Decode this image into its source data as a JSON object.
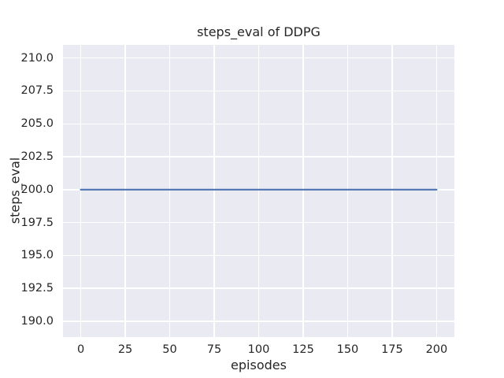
{
  "figure": {
    "background": "#ffffff",
    "text_color": "#262626"
  },
  "chart_data": {
    "type": "line",
    "title": "steps_eval of DDPG",
    "xlabel": "episodes",
    "ylabel": "steps_eval",
    "x_ticks": [
      0,
      25,
      50,
      75,
      100,
      125,
      150,
      175,
      200
    ],
    "x_tick_labels": [
      "0",
      "25",
      "50",
      "75",
      "100",
      "125",
      "150",
      "175",
      "200"
    ],
    "y_ticks": [
      190.0,
      192.5,
      195.0,
      197.5,
      200.0,
      202.5,
      205.0,
      207.5,
      210.0
    ],
    "y_tick_labels": [
      "190.0",
      "192.5",
      "195.0",
      "197.5",
      "200.0",
      "202.5",
      "205.0",
      "207.5",
      "210.0"
    ],
    "xlim": [
      -10,
      210
    ],
    "ylim": [
      188.8,
      211.0
    ],
    "grid": true,
    "grid_color": "#ffffff",
    "plot_background": "#eaeaf2",
    "legend": "none",
    "series": [
      {
        "name": "DDPG",
        "color": "#4c72b0",
        "x": [
          0,
          200
        ],
        "y": [
          200,
          200
        ]
      }
    ]
  }
}
